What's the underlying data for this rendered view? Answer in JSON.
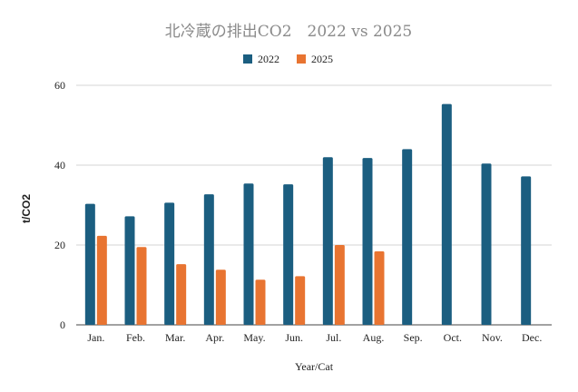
{
  "chart_data": {
    "type": "bar",
    "title": "北冷蔵の排出CO2　2022 vs 2025",
    "xlabel": "Year/Cat",
    "ylabel": "t/CO2",
    "categories": [
      "Jan.",
      "Feb.",
      "Mar.",
      "Apr.",
      "May.",
      "Jun.",
      "Jul.",
      "Aug.",
      "Sep.",
      "Oct.",
      "Nov.",
      "Dec."
    ],
    "series": [
      {
        "name": "2022",
        "color": "#1b5e80",
        "values": [
          30.3,
          27.2,
          30.6,
          32.7,
          35.4,
          35.2,
          42,
          41.8,
          44,
          55.3,
          40.4,
          37.2
        ]
      },
      {
        "name": "2025",
        "color": "#e87431",
        "values": [
          22.3,
          19.5,
          15.2,
          13.8,
          11.3,
          12.2,
          20,
          18.4,
          null,
          null,
          null,
          null
        ]
      }
    ],
    "ylim": [
      0,
      60
    ],
    "yticks": [
      0,
      20,
      40,
      60
    ],
    "grid": true,
    "legend_position": "top"
  }
}
